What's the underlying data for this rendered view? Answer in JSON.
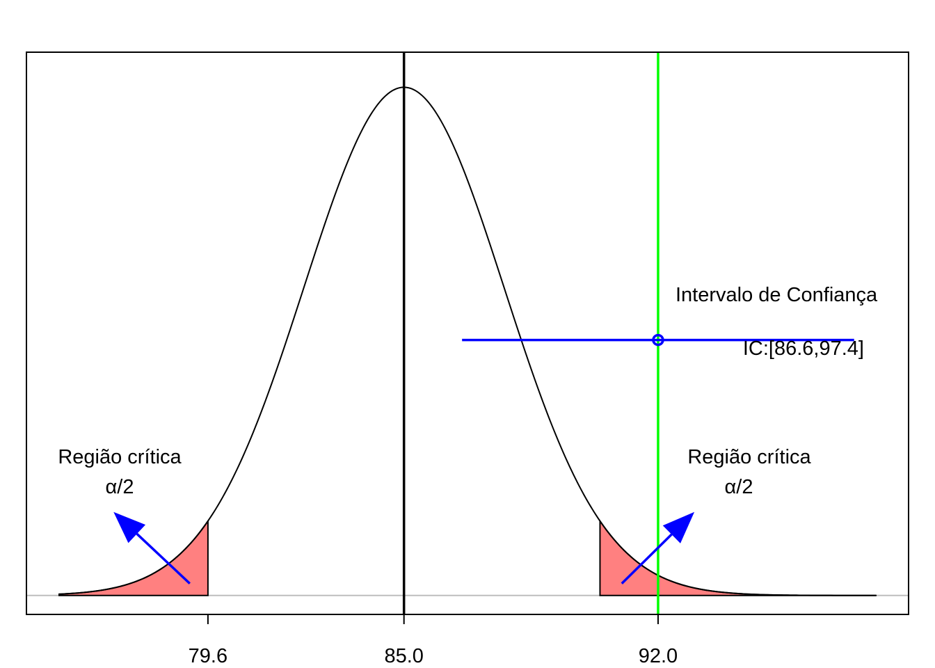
{
  "chart_data": {
    "type": "line",
    "title": "",
    "xlabel": "",
    "ylabel": "",
    "distribution": {
      "kind": "normal",
      "mean": 85.0,
      "sd": 2.755
    },
    "x_range": [
      75.5,
      98.0
    ],
    "xlim": [
      74.6,
      98.9
    ],
    "ylim": [
      -0.0054,
      0.1548
    ],
    "x_ticks": [
      79.6,
      85.0,
      92.0
    ],
    "x_tick_labels": [
      "79.6",
      "85.0",
      "92.0"
    ],
    "critical_values": {
      "lower": 79.6,
      "upper": 90.4
    },
    "mean_line": 85.0,
    "observed_value": 92.0,
    "confidence_interval": {
      "lower": 86.6,
      "upper": 97.4,
      "point": 92.0,
      "y": 0.0728
    },
    "arrows": [
      {
        "from": [
          79.1,
          0.0034
        ],
        "to": [
          77.0,
          0.0238
        ]
      },
      {
        "from": [
          91.0,
          0.0034
        ],
        "to": [
          93.0,
          0.0238
        ]
      }
    ],
    "annotations": {
      "ci_title": "Intervalo de Confiança",
      "ci_label": "IC:[86.6,97.4]",
      "left_region": "Região crítica",
      "left_alpha": "α/2",
      "right_region": "Região crítica",
      "right_alpha": "α/2"
    },
    "colors": {
      "curve": "#000000",
      "critical_fill": "#ff8080",
      "mean_line": "#000000",
      "observed_line": "#00ff00",
      "ci": "#0000ff",
      "arrow": "#0000ff",
      "baseline": "#bebebe"
    }
  }
}
